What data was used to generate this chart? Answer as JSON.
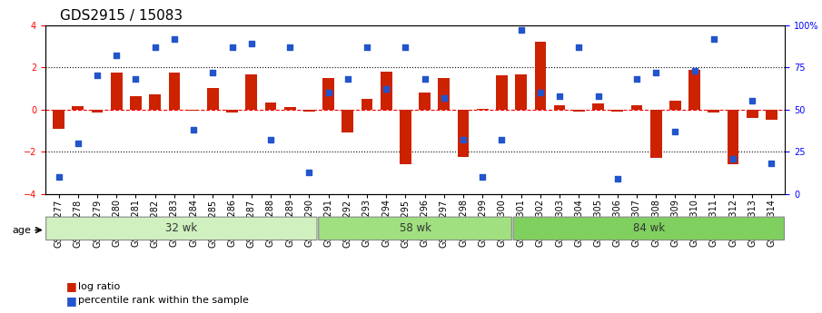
{
  "title": "GDS2915 / 15083",
  "samples": [
    "GSM97277",
    "GSM97278",
    "GSM97279",
    "GSM97280",
    "GSM97281",
    "GSM97282",
    "GSM97283",
    "GSM97284",
    "GSM97285",
    "GSM97286",
    "GSM97287",
    "GSM97288",
    "GSM97289",
    "GSM97290",
    "GSM97291",
    "GSM97292",
    "GSM97293",
    "GSM97294",
    "GSM97295",
    "GSM97296",
    "GSM97297",
    "GSM97298",
    "GSM97299",
    "GSM97300",
    "GSM97301",
    "GSM97302",
    "GSM97303",
    "GSM97304",
    "GSM97305",
    "GSM97306",
    "GSM97307",
    "GSM97308",
    "GSM97309",
    "GSM97310",
    "GSM97311",
    "GSM97312",
    "GSM97313",
    "GSM97314"
  ],
  "log_ratio": [
    -0.9,
    0.15,
    -0.15,
    1.75,
    0.65,
    0.7,
    1.75,
    -0.05,
    1.0,
    -0.15,
    1.65,
    0.35,
    0.1,
    -0.1,
    1.5,
    -1.1,
    0.5,
    1.8,
    -2.6,
    0.8,
    1.5,
    -2.25,
    0.05,
    1.6,
    1.65,
    3.2,
    0.2,
    -0.1,
    0.3,
    -0.1,
    0.2,
    -2.3,
    0.4,
    1.9,
    -0.15,
    -2.6,
    -0.4,
    -0.5
  ],
  "percentile": [
    10,
    30,
    70,
    82,
    68,
    87,
    92,
    38,
    72,
    87,
    89,
    32,
    87,
    13,
    60,
    68,
    87,
    62,
    87,
    68,
    57,
    32,
    10,
    32,
    97,
    60,
    58,
    87,
    58,
    9,
    68,
    72,
    37,
    73,
    92,
    21,
    55,
    18
  ],
  "groups": [
    {
      "label": "32 wk",
      "start": 0,
      "end": 14,
      "color": "#d0f0c0"
    },
    {
      "label": "58 wk",
      "start": 14,
      "end": 24,
      "color": "#a0e080"
    },
    {
      "label": "84 wk",
      "start": 24,
      "end": 38,
      "color": "#80d060"
    }
  ],
  "bar_color": "#cc2200",
  "scatter_color": "#2255cc",
  "ylim": [
    -4,
    4
  ],
  "y2lim": [
    0,
    100
  ],
  "yticks": [
    -4,
    -2,
    0,
    2,
    4
  ],
  "y2ticks": [
    0,
    25,
    50,
    75,
    100
  ],
  "hlines": [
    -2,
    0,
    2
  ],
  "title_fontsize": 11,
  "tick_fontsize": 7,
  "label_fontsize": 8,
  "legend_label1": "log ratio",
  "legend_label2": "percentile rank within the sample",
  "age_label": "age",
  "bar_width": 0.6
}
